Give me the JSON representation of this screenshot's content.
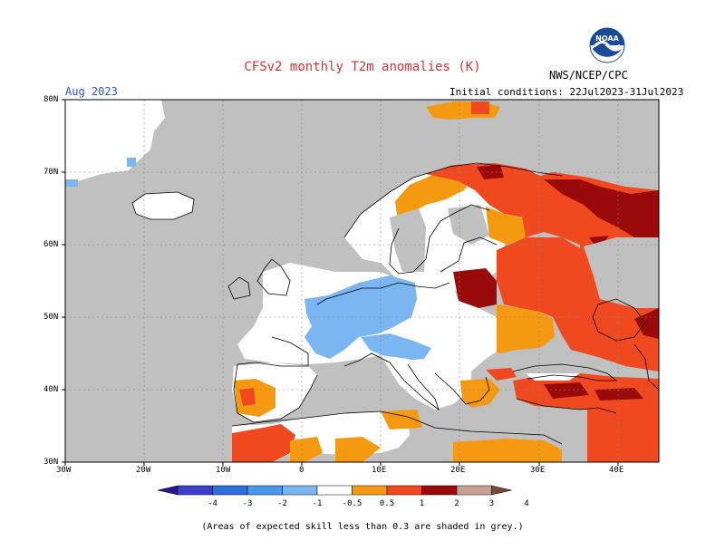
{
  "title": "CFSv2 monthly T2m anomalies (K)",
  "org": "NWS/NCEP/CPC",
  "logo_text": "NOAA",
  "valid_month": "Aug 2023",
  "initial_conditions": "Initial conditions: 22Jul2023-31Jul2023",
  "lat_labels": [
    "80N",
    "70N",
    "60N",
    "50N",
    "40N",
    "30N"
  ],
  "lon_labels": [
    "30W",
    "20W",
    "10W",
    "0",
    "10E",
    "20E",
    "30E",
    "40E"
  ],
  "colorbar": {
    "tick_labels": [
      "-4",
      "-3",
      "-2",
      "-1",
      "-0.5",
      "0.5",
      "1",
      "2",
      "3",
      "4"
    ],
    "colors": [
      "#2c1a8a",
      "#3d3fcc",
      "#2f6fdc",
      "#4a96e8",
      "#7ab6f2",
      "#ffffff",
      "#f59a10",
      "#f0491f",
      "#9b0a0a",
      "#c7a092",
      "#7a4a3a"
    ]
  },
  "note": "(Areas of expected skill less than 0.3 are shaded in grey.)",
  "colors": {
    "skill_grey": "#c0c0c0",
    "neutral": "#ffffff",
    "cold_light": "#7ab6f2",
    "warm_orange": "#f59a10",
    "warm_red": "#f0491f",
    "warm_dark": "#9b0a0a"
  }
}
